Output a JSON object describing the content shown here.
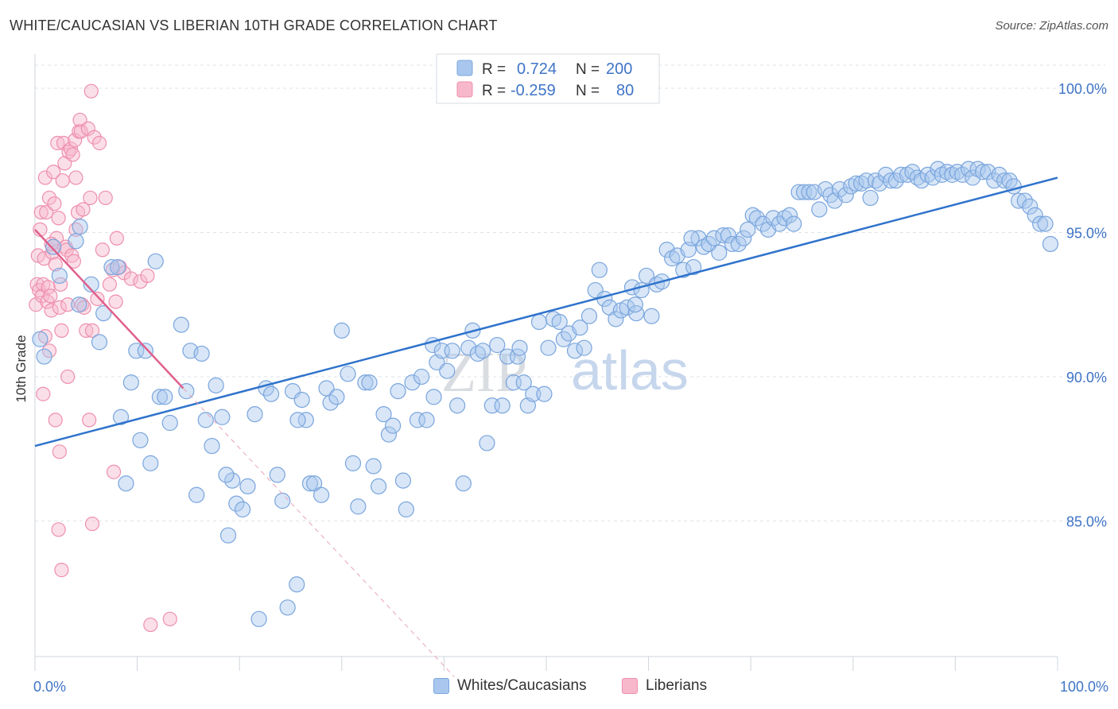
{
  "header": {
    "title": "WHITE/CAUCASIAN VS LIBERIAN 10TH GRADE CORRELATION CHART",
    "source": "Source: ZipAtlas.com"
  },
  "watermark": {
    "zip": "ZIP",
    "atlas": "atlas"
  },
  "legend_top": {
    "rows": [
      {
        "r_label": "R =",
        "r_value": "0.724",
        "n_label": "N =",
        "n_value": "200"
      },
      {
        "r_label": "R =",
        "r_value": "-0.259",
        "n_label": "N =",
        "n_value": "80"
      }
    ]
  },
  "legend_bottom": {
    "items": [
      "Whites/Caucasians",
      "Liberians"
    ]
  },
  "colors": {
    "blue_fill": "#a9c7ee",
    "blue_stroke": "#7aa5dd",
    "blue_line": "#2f73cc",
    "pink_fill": "#f7b8cc",
    "pink_stroke": "#ee8fae",
    "pink_line": "#e0608d",
    "tick_label": "#3f74c6",
    "grid": "#dde3ea"
  },
  "chart_data": {
    "type": "scatter",
    "title": "WHITE/CAUCASIAN VS LIBERIAN 10TH GRADE CORRELATION CHART",
    "xlabel": "",
    "ylabel": "10th Grade",
    "xlim": [
      0,
      100
    ],
    "ylim": [
      80.3,
      100.8
    ],
    "x_tick_labels": [
      "0.0%",
      "100.0%"
    ],
    "y_ticks": [
      85,
      90,
      95,
      100
    ],
    "y_tick_labels": [
      "85.0%",
      "90.0%",
      "95.0%",
      "100.0%"
    ],
    "grid": true,
    "legend_position": "top-center",
    "series": [
      {
        "name": "Whites/Caucasians",
        "r": 0.724,
        "n": 200,
        "trend": {
          "x": [
            0,
            100
          ],
          "y": [
            87.6,
            96.9
          ]
        },
        "points": [
          [
            0.5,
            91.3
          ],
          [
            0.9,
            90.7
          ],
          [
            1.8,
            94.5
          ],
          [
            2.4,
            93.5
          ],
          [
            4.0,
            94.7
          ],
          [
            4.3,
            92.5
          ],
          [
            4.4,
            95.2
          ],
          [
            5.5,
            93.2
          ],
          [
            6.3,
            91.2
          ],
          [
            6.7,
            92.2
          ],
          [
            7.5,
            93.8
          ],
          [
            8.1,
            93.8
          ],
          [
            8.4,
            88.6
          ],
          [
            8.9,
            86.3
          ],
          [
            9.4,
            89.8
          ],
          [
            9.9,
            90.9
          ],
          [
            10.3,
            87.8
          ],
          [
            10.8,
            90.9
          ],
          [
            11.3,
            87.0
          ],
          [
            11.8,
            94.0
          ],
          [
            12.2,
            89.3
          ],
          [
            12.7,
            89.3
          ],
          [
            13.2,
            88.4
          ],
          [
            14.3,
            91.8
          ],
          [
            14.8,
            89.5
          ],
          [
            15.2,
            90.9
          ],
          [
            15.8,
            85.9
          ],
          [
            16.3,
            90.8
          ],
          [
            16.7,
            88.5
          ],
          [
            17.3,
            87.6
          ],
          [
            17.7,
            89.7
          ],
          [
            18.3,
            88.6
          ],
          [
            18.9,
            84.5
          ],
          [
            19.3,
            86.4
          ],
          [
            19.7,
            85.6
          ],
          [
            20.3,
            85.4
          ],
          [
            20.8,
            86.2
          ],
          [
            21.5,
            88.7
          ],
          [
            21.9,
            81.6
          ],
          [
            22.6,
            89.6
          ],
          [
            23.1,
            89.4
          ],
          [
            23.7,
            86.6
          ],
          [
            24.2,
            85.7
          ],
          [
            24.7,
            82.0
          ],
          [
            25.2,
            89.5
          ],
          [
            25.6,
            82.8
          ],
          [
            26.1,
            89.2
          ],
          [
            26.5,
            88.5
          ],
          [
            26.9,
            86.3
          ],
          [
            27.3,
            86.3
          ],
          [
            28.0,
            85.9
          ],
          [
            28.5,
            89.6
          ],
          [
            28.9,
            89.1
          ],
          [
            29.5,
            89.3
          ],
          [
            30.0,
            91.6
          ],
          [
            30.6,
            90.1
          ],
          [
            31.1,
            87.0
          ],
          [
            31.6,
            85.5
          ],
          [
            32.3,
            89.8
          ],
          [
            32.7,
            89.8
          ],
          [
            33.1,
            86.9
          ],
          [
            33.6,
            86.2
          ],
          [
            34.1,
            88.7
          ],
          [
            34.6,
            88.0
          ],
          [
            35.0,
            88.3
          ],
          [
            35.5,
            89.5
          ],
          [
            36.0,
            86.4
          ],
          [
            36.3,
            85.4
          ],
          [
            36.9,
            89.8
          ],
          [
            37.4,
            88.5
          ],
          [
            37.8,
            90.0
          ],
          [
            38.3,
            88.5
          ],
          [
            38.9,
            91.1
          ],
          [
            39.3,
            90.5
          ],
          [
            39.8,
            90.9
          ],
          [
            40.3,
            90.2
          ],
          [
            40.8,
            90.9
          ],
          [
            41.3,
            89.0
          ],
          [
            41.9,
            86.3
          ],
          [
            42.4,
            91.0
          ],
          [
            42.8,
            91.6
          ],
          [
            43.3,
            90.8
          ],
          [
            43.8,
            90.9
          ],
          [
            44.2,
            87.7
          ],
          [
            44.7,
            89.0
          ],
          [
            45.2,
            91.1
          ],
          [
            45.7,
            89.0
          ],
          [
            46.2,
            90.7
          ],
          [
            46.8,
            89.8
          ],
          [
            47.2,
            90.7
          ],
          [
            47.8,
            89.8
          ],
          [
            48.2,
            89.0
          ],
          [
            48.7,
            89.4
          ],
          [
            49.3,
            91.9
          ],
          [
            49.8,
            89.4
          ],
          [
            50.2,
            91.0
          ],
          [
            50.7,
            92.0
          ],
          [
            51.3,
            91.9
          ],
          [
            51.7,
            91.3
          ],
          [
            52.2,
            91.5
          ],
          [
            52.8,
            90.9
          ],
          [
            53.3,
            91.7
          ],
          [
            53.7,
            91.0
          ],
          [
            54.2,
            92.1
          ],
          [
            54.8,
            93.0
          ],
          [
            55.2,
            93.7
          ],
          [
            55.7,
            92.7
          ],
          [
            56.2,
            92.4
          ],
          [
            56.8,
            92.0
          ],
          [
            57.3,
            92.3
          ],
          [
            57.9,
            92.4
          ],
          [
            58.4,
            93.1
          ],
          [
            58.8,
            92.2
          ],
          [
            59.3,
            93.0
          ],
          [
            59.8,
            93.5
          ],
          [
            60.3,
            92.1
          ],
          [
            60.8,
            93.2
          ],
          [
            61.3,
            93.3
          ],
          [
            61.8,
            94.4
          ],
          [
            62.3,
            94.1
          ],
          [
            62.8,
            94.2
          ],
          [
            63.4,
            93.7
          ],
          [
            63.9,
            94.4
          ],
          [
            64.4,
            93.8
          ],
          [
            64.9,
            94.8
          ],
          [
            65.4,
            94.5
          ],
          [
            65.9,
            94.6
          ],
          [
            66.4,
            94.8
          ],
          [
            66.9,
            94.3
          ],
          [
            67.3,
            94.9
          ],
          [
            67.8,
            94.9
          ],
          [
            68.2,
            94.6
          ],
          [
            68.8,
            94.6
          ],
          [
            69.3,
            94.8
          ],
          [
            69.7,
            95.1
          ],
          [
            70.2,
            95.6
          ],
          [
            70.6,
            95.5
          ],
          [
            71.2,
            95.3
          ],
          [
            71.7,
            95.1
          ],
          [
            72.2,
            95.5
          ],
          [
            72.8,
            95.3
          ],
          [
            73.3,
            95.5
          ],
          [
            73.8,
            95.6
          ],
          [
            74.2,
            95.3
          ],
          [
            74.7,
            96.4
          ],
          [
            75.2,
            96.4
          ],
          [
            75.7,
            96.4
          ],
          [
            76.2,
            96.4
          ],
          [
            76.7,
            95.8
          ],
          [
            77.3,
            96.5
          ],
          [
            77.8,
            96.3
          ],
          [
            78.2,
            96.1
          ],
          [
            78.7,
            96.5
          ],
          [
            79.3,
            96.3
          ],
          [
            79.8,
            96.6
          ],
          [
            80.3,
            96.7
          ],
          [
            80.8,
            96.7
          ],
          [
            81.3,
            96.8
          ],
          [
            81.7,
            96.2
          ],
          [
            82.2,
            96.8
          ],
          [
            82.6,
            96.7
          ],
          [
            83.2,
            97.0
          ],
          [
            83.7,
            96.8
          ],
          [
            84.2,
            96.8
          ],
          [
            84.7,
            97.0
          ],
          [
            85.3,
            97.0
          ],
          [
            85.8,
            97.1
          ],
          [
            86.3,
            96.9
          ],
          [
            86.7,
            96.8
          ],
          [
            87.3,
            97.0
          ],
          [
            87.8,
            96.9
          ],
          [
            88.3,
            97.2
          ],
          [
            88.7,
            97.0
          ],
          [
            89.2,
            97.1
          ],
          [
            89.7,
            97.0
          ],
          [
            90.2,
            97.1
          ],
          [
            90.7,
            97.0
          ],
          [
            91.3,
            97.2
          ],
          [
            91.7,
            96.9
          ],
          [
            92.2,
            97.2
          ],
          [
            92.7,
            97.1
          ],
          [
            93.2,
            97.1
          ],
          [
            93.8,
            96.8
          ],
          [
            94.3,
            97.0
          ],
          [
            94.8,
            96.8
          ],
          [
            95.3,
            96.8
          ],
          [
            95.7,
            96.6
          ],
          [
            96.2,
            96.1
          ],
          [
            96.8,
            96.1
          ],
          [
            97.3,
            95.9
          ],
          [
            97.8,
            95.6
          ],
          [
            98.3,
            95.3
          ],
          [
            98.8,
            95.3
          ],
          [
            99.3,
            94.6
          ],
          [
            64.2,
            94.8
          ],
          [
            58.7,
            92.5
          ],
          [
            47.4,
            91.0
          ],
          [
            39.0,
            89.3
          ],
          [
            25.7,
            88.5
          ],
          [
            18.7,
            86.6
          ]
        ]
      },
      {
        "name": "Liberians",
        "r": -0.259,
        "n": 80,
        "trend": {
          "x": [
            0,
            14.5
          ],
          "y": [
            95.1,
            89.6
          ],
          "dashed_extension": {
            "x": [
              14.5,
              41.0
            ],
            "y": [
              89.6,
              79.6
            ]
          }
        },
        "points": [
          [
            0.1,
            92.5
          ],
          [
            0.2,
            93.2
          ],
          [
            0.3,
            94.2
          ],
          [
            0.4,
            93.0
          ],
          [
            0.5,
            95.1
          ],
          [
            0.6,
            95.7
          ],
          [
            0.7,
            92.8
          ],
          [
            0.8,
            93.2
          ],
          [
            0.9,
            94.1
          ],
          [
            1.0,
            96.9
          ],
          [
            1.1,
            95.7
          ],
          [
            1.2,
            92.6
          ],
          [
            1.3,
            93.1
          ],
          [
            1.4,
            96.2
          ],
          [
            1.5,
            92.8
          ],
          [
            1.6,
            92.3
          ],
          [
            1.7,
            94.3
          ],
          [
            1.8,
            97.1
          ],
          [
            1.9,
            96.0
          ],
          [
            2.0,
            93.9
          ],
          [
            2.1,
            94.8
          ],
          [
            2.2,
            98.1
          ],
          [
            2.3,
            95.5
          ],
          [
            2.4,
            92.4
          ],
          [
            2.5,
            93.2
          ],
          [
            2.6,
            91.6
          ],
          [
            2.7,
            96.8
          ],
          [
            2.8,
            98.1
          ],
          [
            2.9,
            97.4
          ],
          [
            3.0,
            94.5
          ],
          [
            3.1,
            94.4
          ],
          [
            3.3,
            97.8
          ],
          [
            3.5,
            97.9
          ],
          [
            3.6,
            94.2
          ],
          [
            3.7,
            97.7
          ],
          [
            3.8,
            94.0
          ],
          [
            3.9,
            98.2
          ],
          [
            4.0,
            95.1
          ],
          [
            4.2,
            95.7
          ],
          [
            4.3,
            98.5
          ],
          [
            4.4,
            98.9
          ],
          [
            4.5,
            98.5
          ],
          [
            4.6,
            92.5
          ],
          [
            4.7,
            95.8
          ],
          [
            4.8,
            92.4
          ],
          [
            5.0,
            91.6
          ],
          [
            5.2,
            98.6
          ],
          [
            5.4,
            96.2
          ],
          [
            5.6,
            91.6
          ],
          [
            5.8,
            98.3
          ],
          [
            6.1,
            92.7
          ],
          [
            6.3,
            98.1
          ],
          [
            6.6,
            94.4
          ],
          [
            6.9,
            96.2
          ],
          [
            7.3,
            93.2
          ],
          [
            7.6,
            93.7
          ],
          [
            7.9,
            92.6
          ],
          [
            8.0,
            94.8
          ],
          [
            8.3,
            93.8
          ],
          [
            8.7,
            93.6
          ],
          [
            9.4,
            93.4
          ],
          [
            10.3,
            93.3
          ],
          [
            11.0,
            93.5
          ],
          [
            0.8,
            89.4
          ],
          [
            2.0,
            88.5
          ],
          [
            2.4,
            87.4
          ],
          [
            1.4,
            90.9
          ],
          [
            3.2,
            90.0
          ],
          [
            5.3,
            88.5
          ],
          [
            7.7,
            86.7
          ],
          [
            2.3,
            84.7
          ],
          [
            5.6,
            84.9
          ],
          [
            2.6,
            83.3
          ],
          [
            11.3,
            81.4
          ],
          [
            13.2,
            81.6
          ],
          [
            5.5,
            99.9
          ],
          [
            4.0,
            96.9
          ],
          [
            3.2,
            92.5
          ],
          [
            1.0,
            91.4
          ],
          [
            1.6,
            94.6
          ]
        ]
      }
    ]
  }
}
